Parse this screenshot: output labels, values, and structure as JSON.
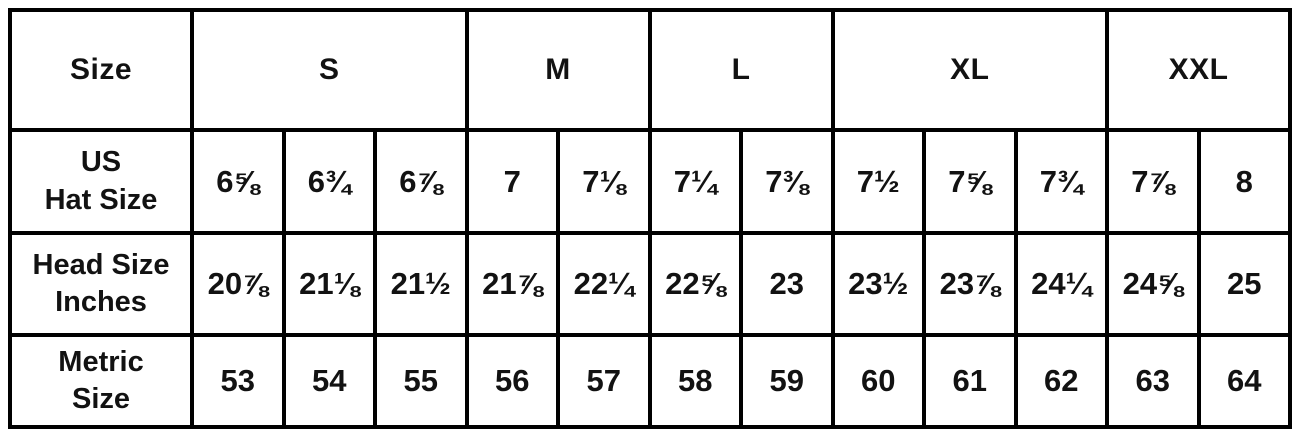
{
  "chart_data": {
    "type": "table",
    "corner_header": "Size",
    "size_groups": [
      {
        "label": "S",
        "span": 3
      },
      {
        "label": "M",
        "span": 2
      },
      {
        "label": "L",
        "span": 2
      },
      {
        "label": "XL",
        "span": 3
      },
      {
        "label": "XXL",
        "span": 2
      }
    ],
    "rows": [
      {
        "label_line1": "US",
        "label_line2": "Hat Size",
        "values": [
          "6⅝",
          "6¾",
          "6⅞",
          "7",
          "7⅛",
          "7¼",
          "7⅜",
          "7½",
          "7⅝",
          "7¾",
          "7⅞",
          "8"
        ]
      },
      {
        "label_line1": "Head Size",
        "label_line2": "Inches",
        "values": [
          "20⅞",
          "21⅛",
          "21½",
          "21⅞",
          "22¼",
          "22⅝",
          "23",
          "23½",
          "23⅞",
          "24¼",
          "24⅝",
          "25"
        ]
      },
      {
        "label_line1": "Metric",
        "label_line2": "Size",
        "values": [
          "53",
          "54",
          "55",
          "56",
          "57",
          "58",
          "59",
          "60",
          "61",
          "62",
          "63",
          "64"
        ]
      }
    ],
    "colors": {
      "border": "#000000",
      "background": "#ffffff",
      "text": "#121212"
    }
  }
}
